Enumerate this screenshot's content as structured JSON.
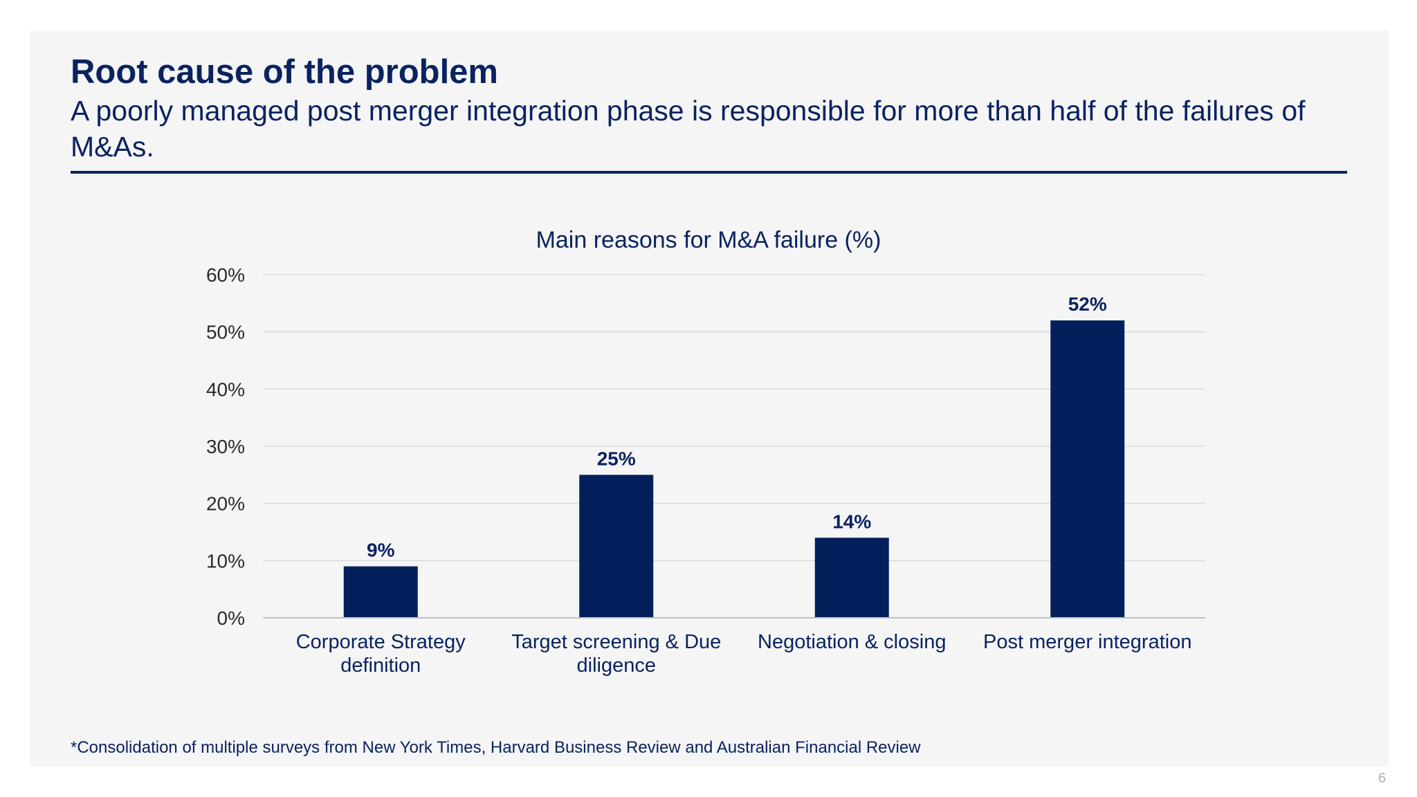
{
  "slide": {
    "title": "Root cause of the problem",
    "subtitle": "A poorly managed post merger integration phase is responsible for more than half of the failures of M&As.",
    "footnote": "*Consolidation of multiple surveys from New York Times, Harvard Business Review and Australian Financial Review",
    "page_number": "6"
  },
  "colors": {
    "bar": "#04205c",
    "text": "#0a2260",
    "gridline": "#d9d9d9",
    "axis": "#bfbfbf"
  },
  "chart_data": {
    "type": "bar",
    "title": "Main reasons for M&A failure (%)",
    "xlabel": "",
    "ylabel": "",
    "categories": [
      [
        "Corporate Strategy",
        "definition"
      ],
      [
        "Target screening & Due",
        "diligence"
      ],
      [
        "Negotiation & closing"
      ],
      [
        "Post merger integration"
      ]
    ],
    "values": [
      9,
      25,
      14,
      52
    ],
    "value_labels": [
      "9%",
      "25%",
      "14%",
      "52%"
    ],
    "ylim": [
      0,
      60
    ],
    "yticks": [
      0,
      10,
      20,
      30,
      40,
      50,
      60
    ],
    "ytick_labels": [
      "0%",
      "10%",
      "20%",
      "30%",
      "40%",
      "50%",
      "60%"
    ],
    "grid": true,
    "legend": "none"
  }
}
